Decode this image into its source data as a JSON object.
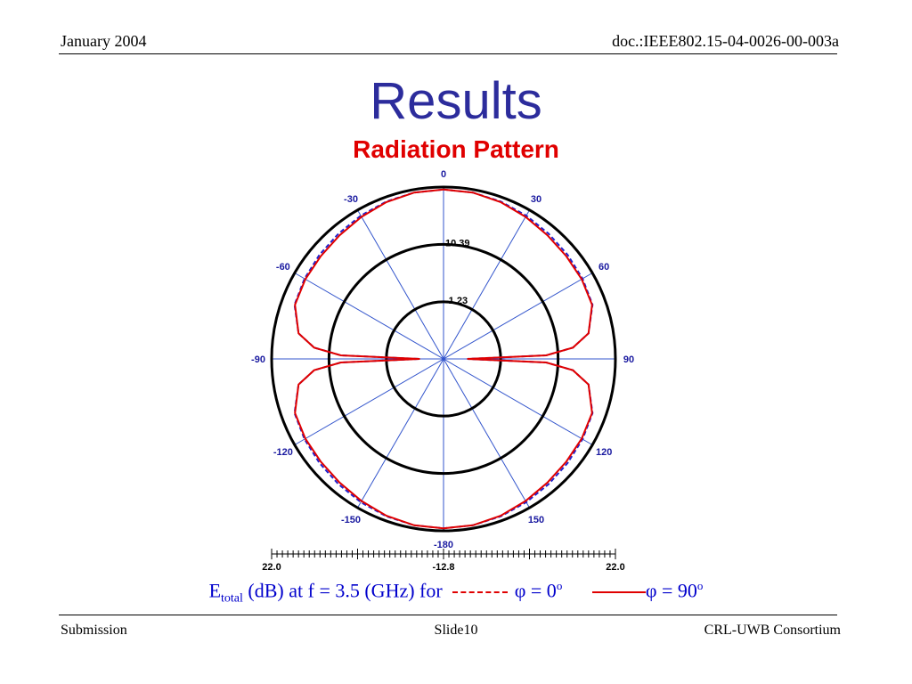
{
  "header": {
    "date": "January 2004",
    "doc_id": "doc.:IEEE802.15-04-0026-00-003a"
  },
  "slide": {
    "title": "Results",
    "subtitle": "Radiation Pattern"
  },
  "caption": {
    "quantity": "E",
    "quantity_sub": "total",
    "text": "(dB) at f = 3.5 (GHz) for",
    "series0_label": "φ = 0",
    "series0_sup": "o",
    "series1_label": "φ = 90",
    "series1_sup": "o"
  },
  "footer": {
    "left": "Submission",
    "center": "Slide10",
    "right": "CRL-UWB Consortium"
  },
  "colors": {
    "title": "#2c2c9c",
    "subtitle": "#e00000",
    "grid_spokes": "#3355cc",
    "rings": "#000000",
    "angle_labels": "#1a1aa0",
    "series_phi0": "#2222cc",
    "series_phi90": "#e00000"
  },
  "chart_data": {
    "type": "polar",
    "angle_ticks": [
      "0",
      "30",
      "60",
      "90",
      "120",
      "150",
      "-180",
      "-150",
      "-120",
      "-90",
      "-60",
      "-30"
    ],
    "angle_tick_values": [
      0,
      30,
      60,
      90,
      120,
      150,
      180,
      -150,
      -120,
      -90,
      -60,
      -30
    ],
    "ring_labels": [
      "10.39",
      "-1.23"
    ],
    "ring_values": [
      10.39,
      -1.23
    ],
    "radial_range": [
      -12.8,
      22.0
    ],
    "scale_labels": [
      "22.0",
      "-12.8",
      "22.0"
    ],
    "series": [
      {
        "name": "φ = 0",
        "style": "dashed",
        "theta": [
          0,
          10,
          20,
          30,
          40,
          50,
          60,
          70,
          80,
          85,
          88,
          90,
          92,
          95,
          100,
          110,
          120,
          130,
          140,
          150,
          160,
          170,
          180
        ],
        "r": [
          21.5,
          21.4,
          21.1,
          20.7,
          20.3,
          20.0,
          19.7,
          19.3,
          17.0,
          13.5,
          8.0,
          -8.0,
          8.0,
          13.5,
          17.0,
          19.3,
          19.7,
          20.0,
          20.3,
          20.7,
          21.1,
          21.4,
          21.5
        ]
      },
      {
        "name": "φ = 90",
        "style": "solid",
        "theta": [
          0,
          10,
          20,
          30,
          40,
          50,
          60,
          70,
          80,
          85,
          88,
          90,
          92,
          95,
          100,
          110,
          120,
          130,
          140,
          150,
          160,
          170,
          180
        ],
        "r": [
          21.5,
          21.4,
          21.0,
          20.4,
          19.9,
          19.6,
          19.5,
          19.2,
          17.0,
          13.5,
          8.0,
          -8.0,
          8.0,
          13.5,
          17.0,
          19.2,
          19.5,
          19.6,
          19.9,
          20.4,
          21.0,
          21.4,
          21.5
        ]
      }
    ]
  }
}
